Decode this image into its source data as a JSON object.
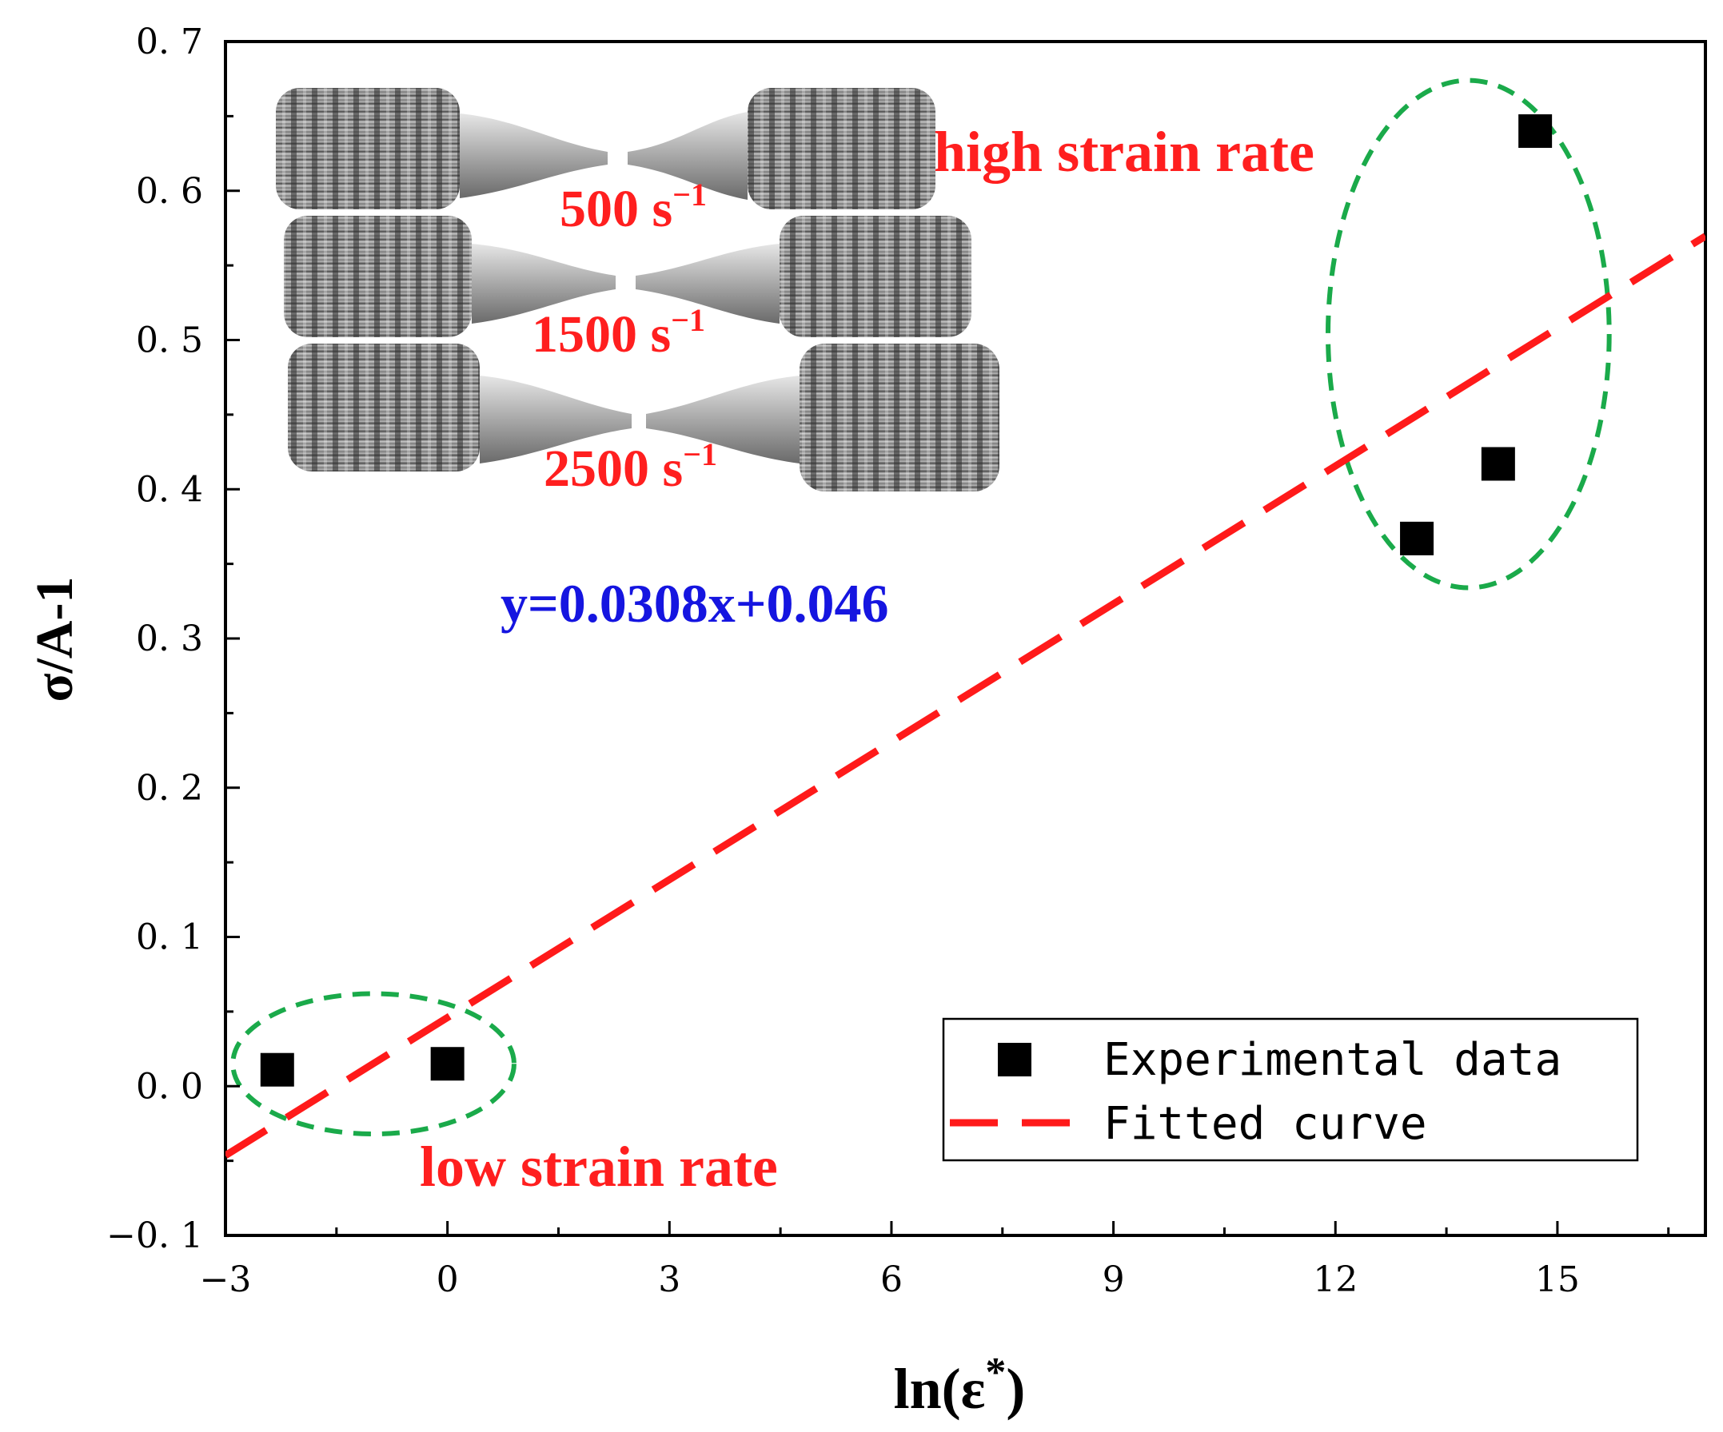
{
  "chart_data": {
    "type": "scatter",
    "title": "",
    "xlabel": "ln(ε*)",
    "xlabel_base": "ln(ε",
    "xlabel_sup": "*",
    "xlabel_close": ")",
    "ylabel": "σ/A-1",
    "xlim": [
      -3,
      17
    ],
    "ylim": [
      -0.1,
      0.7
    ],
    "x_ticks": [
      -3,
      0,
      3,
      6,
      9,
      12,
      15
    ],
    "x_tick_labels": [
      "−3",
      "0",
      "3",
      "6",
      "9",
      "12",
      "15"
    ],
    "y_ticks": [
      -0.1,
      0.0,
      0.1,
      0.2,
      0.3,
      0.4,
      0.5,
      0.6,
      0.7
    ],
    "y_tick_labels": [
      "−0. 1",
      "0. 0",
      "0. 1",
      "0. 2",
      "0. 3",
      "0. 4",
      "0. 5",
      "0. 6",
      "0. 7"
    ],
    "grid": false,
    "series": [
      {
        "name": "Experimental data",
        "kind": "scatter",
        "marker": "square",
        "color": "#000000",
        "points": [
          {
            "x": -2.3,
            "y": 0.011
          },
          {
            "x": 0.0,
            "y": 0.015
          },
          {
            "x": 13.1,
            "y": 0.367
          },
          {
            "x": 14.2,
            "y": 0.417
          },
          {
            "x": 14.7,
            "y": 0.64
          }
        ]
      },
      {
        "name": "Fitted curve",
        "kind": "line",
        "style": "dashed",
        "color": "#ff1a1a",
        "slope": 0.0308,
        "intercept": 0.046,
        "x_range": [
          -3,
          17
        ]
      }
    ],
    "legend": {
      "position": "bottom-right",
      "entries": [
        "Experimental data",
        "Fitted curve"
      ]
    },
    "annotations": {
      "equation": "y=0.0308x+0.046",
      "high_rate_label": "high strain rate",
      "low_rate_label": "low strain rate",
      "rate_labels": [
        {
          "value": "500 s",
          "sup": "−1"
        },
        {
          "value": "1500 s",
          "sup": "−1"
        },
        {
          "value": "2500 s",
          "sup": "−1"
        }
      ]
    },
    "highlight_regions": [
      {
        "name": "low strain rate group",
        "color": "#1aaa4a",
        "style": "dashed-ellipse",
        "center": [
          -1.0,
          0.015
        ],
        "rx": 1.9,
        "ry": 0.047
      },
      {
        "name": "high strain rate group",
        "color": "#1aaa4a",
        "style": "dashed-ellipse",
        "center": [
          13.8,
          0.504
        ],
        "rx": 1.9,
        "ry": 0.17
      }
    ],
    "colors": {
      "axis": "#000000",
      "data": "#000000",
      "fit": "#ff1a1a",
      "annotation_red": "#ff1f1f",
      "equation_blue": "#1515e0",
      "ellipse": "#1aaa4a"
    }
  }
}
